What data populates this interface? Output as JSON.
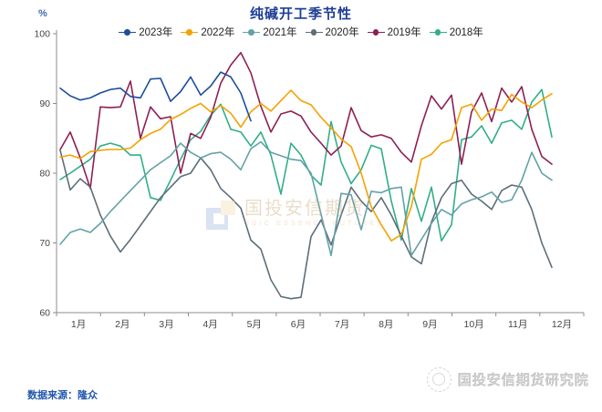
{
  "header": {
    "title": "纯碱开工季节性",
    "y_unit": "%"
  },
  "footer": {
    "source_label": "数据来源：隆众",
    "brand": "国投安信期货研究院"
  },
  "watermark": {
    "cn": "国投安信期货",
    "en": "SDIC ESSENCE FUTURES"
  },
  "chart_data": {
    "type": "line",
    "title": "纯碱开工季节性",
    "xlabel": "",
    "ylabel": "%",
    "ylim": [
      60,
      100
    ],
    "yticks": [
      60,
      70,
      80,
      90,
      100
    ],
    "grid": false,
    "legend_position": "top",
    "x_axis": {
      "unit": "week-of-year",
      "months": [
        "1月",
        "2月",
        "3月",
        "4月",
        "5月",
        "6月",
        "7月",
        "8月",
        "9月",
        "10月",
        "11月",
        "12月"
      ]
    },
    "series": [
      {
        "name": "2023年",
        "color": "#1d4e9e",
        "values": [
          92.2,
          91.1,
          90.5,
          90.8,
          91.5,
          92.0,
          92.2,
          91.0,
          90.8,
          93.5,
          93.6,
          90.3,
          91.7,
          93.8,
          91.2,
          92.5,
          94.5,
          93.8,
          91.5,
          87.5
        ]
      },
      {
        "name": "2022年",
        "color": "#f5a200",
        "values": [
          82.3,
          82.6,
          82.1,
          83.1,
          83.3,
          83.4,
          83.4,
          83.6,
          84.8,
          85.7,
          86.3,
          87.7,
          88.4,
          89.3,
          90.0,
          88.8,
          89.7,
          88.6,
          86.6,
          88.8,
          90.0,
          88.9,
          90.4,
          91.9,
          90.4,
          89.8,
          88.0,
          86.5,
          84.9,
          83.8,
          80.0,
          75.2,
          72.6,
          70.3,
          71.2,
          75.2,
          82.0,
          82.7,
          84.3,
          84.8,
          89.4,
          89.9,
          87.6,
          89.2,
          89.0,
          91.3,
          90.2,
          89.4,
          90.5,
          91.4
        ]
      },
      {
        "name": "2021年",
        "color": "#63a2a8",
        "values": [
          69.8,
          71.5,
          72.0,
          71.5,
          72.8,
          74.5,
          76.0,
          77.5,
          79.0,
          80.5,
          81.5,
          82.5,
          84.3,
          83.0,
          82.2,
          82.8,
          83.0,
          82.0,
          80.5,
          83.5,
          84.5,
          83.0,
          82.5,
          82.0,
          81.8,
          80.0,
          74.1,
          68.2,
          77.1,
          76.9,
          71.9,
          77.4,
          77.2,
          77.8,
          78.0,
          68.2,
          70.5,
          72.8,
          74.8,
          74.0,
          75.6,
          76.2,
          76.6,
          77.3,
          75.8,
          76.2,
          79.0,
          83.0,
          80.0,
          79.0
        ]
      },
      {
        "name": "2020年",
        "color": "#5d6e7a",
        "values": [
          83.3,
          77.6,
          79.2,
          78.0,
          74.0,
          71.0,
          68.7,
          70.5,
          72.5,
          74.5,
          76.5,
          78.0,
          79.5,
          80.0,
          82.2,
          80.5,
          77.8,
          76.5,
          75.0,
          70.4,
          69.1,
          64.7,
          62.3,
          62.0,
          62.2,
          70.9,
          73.3,
          69.7,
          74.0,
          78.0,
          76.0,
          74.5,
          76.5,
          74.0,
          71.0,
          68.0,
          67.0,
          73.0,
          76.5,
          78.5,
          79.0,
          77.0,
          76.0,
          74.8,
          77.5,
          78.3,
          78.0,
          74.8,
          70.0,
          66.5
        ]
      },
      {
        "name": "2019年",
        "color": "#8d1f55",
        "values": [
          83.4,
          85.9,
          82.2,
          77.8,
          89.5,
          89.4,
          89.5,
          93.2,
          85.0,
          89.5,
          87.8,
          88.1,
          80.0,
          85.7,
          85.0,
          88.0,
          92.9,
          95.5,
          97.3,
          94.4,
          89.6,
          85.9,
          88.5,
          88.9,
          88.2,
          85.9,
          84.3,
          82.6,
          83.9,
          89.4,
          86.1,
          85.2,
          85.5,
          85.0,
          83.0,
          81.6,
          86.8,
          91.1,
          89.2,
          91.2,
          81.3,
          88.8,
          91.5,
          87.4,
          92.2,
          90.2,
          92.4,
          86.3,
          82.4,
          81.3
        ]
      },
      {
        "name": "2018年",
        "color": "#31ae88",
        "values": [
          79.1,
          80.0,
          81.0,
          82.0,
          83.9,
          84.3,
          83.9,
          82.6,
          82.6,
          76.5,
          76.1,
          79.0,
          82.0,
          84.8,
          86.0,
          88.3,
          89.9,
          86.3,
          85.9,
          83.9,
          85.9,
          82.6,
          77.0,
          84.3,
          82.6,
          79.7,
          78.3,
          87.4,
          81.6,
          78.5,
          80.5,
          84.0,
          83.5,
          76.0,
          70.4,
          77.8,
          73.1,
          78.0,
          70.3,
          72.6,
          84.8,
          85.2,
          86.8,
          84.3,
          87.2,
          87.6,
          86.3,
          90.2,
          92.0,
          85.2
        ]
      }
    ]
  }
}
